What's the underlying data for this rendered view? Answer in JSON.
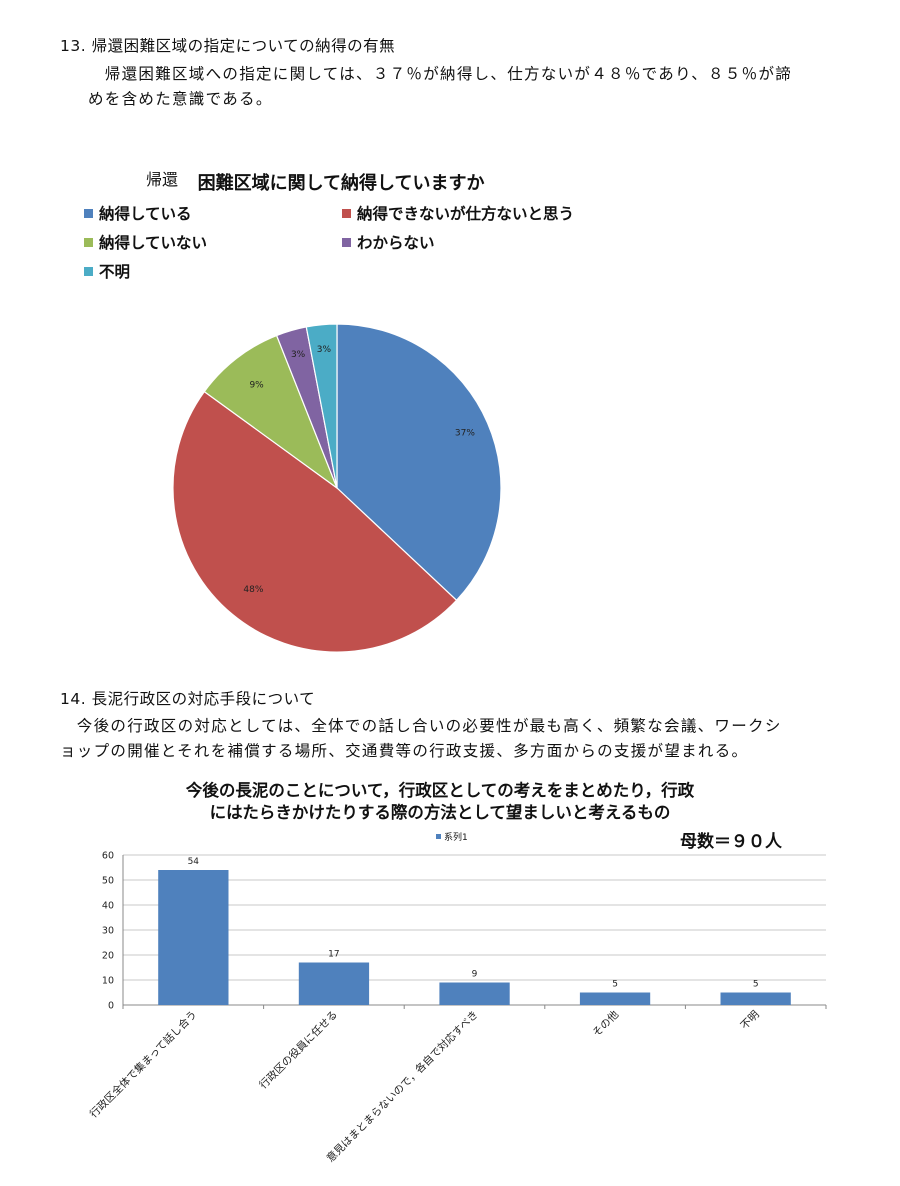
{
  "section13": {
    "heading": "13. 帰還困難区域の指定についての納得の有無",
    "para_line1": "　帰還困難区域への指定に関しては、３７％が納得し、仕方ないが４８％であり、８５％が諦",
    "para_line2": "めを含めた意識である。"
  },
  "pie": {
    "title_prefix": "帰還",
    "title_main": "困難区域に関して納得していますか"
  },
  "section14": {
    "heading": "14. 長泥行政区の対応手段について",
    "para_line1": "　今後の行政区の対応としては、全体での話し合いの必要性が最も高く、頻繁な会議、ワークシ",
    "para_line2": "ョップの開催とそれを補償する場所、交通費等の行政支援、多方面からの支援が望まれる。"
  },
  "bar": {
    "title_line1": "今後の長泥のことについて，行政区としての考えをまとめたり，行政",
    "title_line2": "にはたらきかけたりする際の方法として望ましいと考えるもの",
    "sample_note": "母数＝９０人"
  },
  "chart_data": [
    {
      "type": "pie",
      "title": "帰還困難区域に関して納得していますか",
      "labels": [
        "納得している",
        "納得できないが仕方ないと思う",
        "納得していない",
        "わからない",
        "不明"
      ],
      "values": [
        37,
        48,
        9,
        3,
        3
      ],
      "value_labels": [
        "37%",
        "48%",
        "9%",
        "3%",
        "3%"
      ],
      "colors": [
        "#4f81bd",
        "#c0504d",
        "#9bbb59",
        "#8064a2",
        "#4bacc6"
      ],
      "legend_position": "top"
    },
    {
      "type": "bar",
      "title": "今後の長泥のことについて，行政区としての考えをまとめたり，行政にはたらきかけたりする際の方法として望ましいと考えるもの",
      "categories": [
        "行政区全体で集まって話し合う",
        "行政区の役員に任せる",
        "意見はまとまらないので，各自で対応すべき",
        "その他",
        "不明"
      ],
      "series": [
        {
          "name": "系列1",
          "values": [
            54,
            17,
            9,
            5,
            5
          ]
        }
      ],
      "ylim": [
        0,
        60
      ],
      "yticks": [
        0,
        10,
        20,
        30,
        40,
        50,
        60
      ],
      "color": "#4f81bd",
      "grid": true,
      "legend_position": "top"
    }
  ]
}
